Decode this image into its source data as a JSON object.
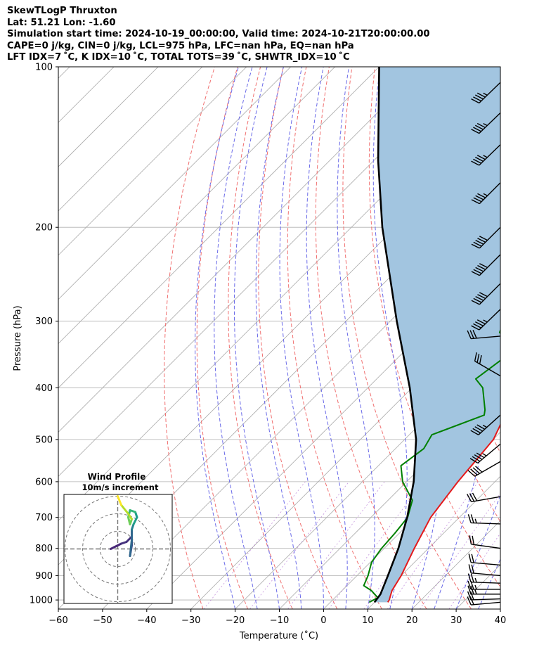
{
  "header": {
    "line1": "SkewTLogP Thruxton",
    "line2": "Lat: 51.21   Lon: -1.60",
    "line3": "Simulation start time: 2024-10-19_00:00:00, Valid time: 2024-10-21T20:00:00.00",
    "line4": "CAPE=0 j/kg, CIN=0 j/kg, LCL=975 hPa, LFC=nan hPa, EQ=nan hPa",
    "line5": "LFT IDX=7 ˚C, K IDX=10 ˚C, TOTAL TOTS=39 ˚C, SHWTR_IDX=10 ˚C"
  },
  "chart_data": {
    "type": "line",
    "xlabel": "Temperature (˚C)",
    "ylabel": "Pressure (hPa)",
    "xlim": [
      -60,
      40
    ],
    "ylim": [
      1040,
      100
    ],
    "y_scale": "log",
    "x_ticks": [
      "−60",
      "−50",
      "−40",
      "−30",
      "−20",
      "−10",
      "0",
      "10",
      "20",
      "30",
      "40"
    ],
    "y_ticks": [
      "100",
      "200",
      "300",
      "400",
      "500",
      "600",
      "700",
      "800",
      "900",
      "1000"
    ],
    "skew": 1,
    "grid": true,
    "series": [
      {
        "role": "temperature",
        "color": "#e41a1c",
        "points": [
          {
            "p": 1010,
            "t": 13.0
          },
          {
            "p": 1000,
            "t": 12.8
          },
          {
            "p": 960,
            "t": 11.3
          },
          {
            "p": 900,
            "t": 10.0
          },
          {
            "p": 800,
            "t": 6.8
          },
          {
            "p": 700,
            "t": 3.5
          },
          {
            "p": 600,
            "t": 1.6
          },
          {
            "p": 550,
            "t": 0.9
          },
          {
            "p": 500,
            "t": 0.1
          },
          {
            "p": 450,
            "t": -2.8
          },
          {
            "p": 400,
            "t": -5.4
          },
          {
            "p": 350,
            "t": -8.0
          },
          {
            "p": 325,
            "t": -9.9
          },
          {
            "p": 305,
            "t": -10.3
          },
          {
            "p": 280,
            "t": -11.7
          },
          {
            "p": 250,
            "t": -13.1
          },
          {
            "p": 215,
            "t": -15.2
          },
          {
            "p": 200,
            "t": -17.0
          },
          {
            "p": 175,
            "t": -22.1
          },
          {
            "p": 155,
            "t": -25.7
          },
          {
            "p": 140,
            "t": -28.1
          },
          {
            "p": 125,
            "t": -31.9
          },
          {
            "p": 115,
            "t": -34.6
          },
          {
            "p": 100,
            "t": -40.3
          }
        ]
      },
      {
        "role": "dewpoint",
        "color": "#008000",
        "points": [
          {
            "p": 1010,
            "t": 8.8
          },
          {
            "p": 990,
            "t": 9.7
          },
          {
            "p": 960,
            "t": 6.6
          },
          {
            "p": 940,
            "t": 3.8
          },
          {
            "p": 900,
            "t": 2.5
          },
          {
            "p": 850,
            "t": 0.3
          },
          {
            "p": 800,
            "t": -0.6
          },
          {
            "p": 750,
            "t": -1.0
          },
          {
            "p": 700,
            "t": -1.7
          },
          {
            "p": 650,
            "t": -4.5
          },
          {
            "p": 600,
            "t": -10.9
          },
          {
            "p": 560,
            "t": -14.9
          },
          {
            "p": 520,
            "t": -13.6
          },
          {
            "p": 490,
            "t": -14.9
          },
          {
            "p": 450,
            "t": -7.5
          },
          {
            "p": 440,
            "t": -8.5
          },
          {
            "p": 400,
            "t": -14.0
          },
          {
            "p": 385,
            "t": -17.6
          },
          {
            "p": 350,
            "t": -15.9
          },
          {
            "p": 330,
            "t": -17.5
          },
          {
            "p": 315,
            "t": -22.7
          },
          {
            "p": 290,
            "t": -25.3
          },
          {
            "p": 270,
            "t": -27.0
          },
          {
            "p": 255,
            "t": -26.0
          },
          {
            "p": 235,
            "t": -24.1
          },
          {
            "p": 215,
            "t": -23.6
          },
          {
            "p": 200,
            "t": -25.0
          },
          {
            "p": 180,
            "t": -25.4
          },
          {
            "p": 165,
            "t": -26.8
          },
          {
            "p": 150,
            "t": -22.6
          },
          {
            "p": 130,
            "t": -14.2
          },
          {
            "p": 100,
            "t": -2.5
          }
        ]
      },
      {
        "role": "parcel",
        "color": "#000000",
        "points": [
          {
            "p": 1010,
            "t": 10.0
          },
          {
            "p": 975,
            "t": 9.5
          },
          {
            "p": 900,
            "t": 7.0
          },
          {
            "p": 800,
            "t": 3.2
          },
          {
            "p": 700,
            "t": -1.8
          },
          {
            "p": 600,
            "t": -8.4
          },
          {
            "p": 500,
            "t": -17.4
          },
          {
            "p": 400,
            "t": -30.5
          },
          {
            "p": 300,
            "t": -48.5
          },
          {
            "p": 200,
            "t": -73.0
          },
          {
            "p": 150,
            "t": -89.0
          },
          {
            "p": 100,
            "t": -110.0
          }
        ]
      }
    ],
    "wind_barbs": [
      {
        "p": 1010,
        "dir": 265,
        "spd_kt": 20
      },
      {
        "p": 995,
        "dir": 268,
        "spd_kt": 22
      },
      {
        "p": 975,
        "dir": 270,
        "spd_kt": 25
      },
      {
        "p": 955,
        "dir": 270,
        "spd_kt": 25
      },
      {
        "p": 930,
        "dir": 272,
        "spd_kt": 25
      },
      {
        "p": 900,
        "dir": 275,
        "spd_kt": 20
      },
      {
        "p": 860,
        "dir": 275,
        "spd_kt": 20
      },
      {
        "p": 800,
        "dir": 278,
        "spd_kt": 20
      },
      {
        "p": 720,
        "dir": 272,
        "spd_kt": 25
      },
      {
        "p": 640,
        "dir": 260,
        "spd_kt": 30
      },
      {
        "p": 550,
        "dir": 240,
        "spd_kt": 40
      },
      {
        "p": 510,
        "dir": 230,
        "spd_kt": 45
      },
      {
        "p": 450,
        "dir": 228,
        "spd_kt": 45
      },
      {
        "p": 380,
        "dir": 300,
        "spd_kt": 30
      },
      {
        "p": 320,
        "dir": 265,
        "spd_kt": 30
      },
      {
        "p": 285,
        "dir": 226,
        "spd_kt": 45
      },
      {
        "p": 255,
        "dir": 225,
        "spd_kt": 50
      },
      {
        "p": 225,
        "dir": 225,
        "spd_kt": 50
      },
      {
        "p": 200,
        "dir": 225,
        "spd_kt": 50
      },
      {
        "p": 165,
        "dir": 225,
        "spd_kt": 45
      },
      {
        "p": 140,
        "dir": 226,
        "spd_kt": 45
      },
      {
        "p": 122,
        "dir": 226,
        "spd_kt": 45
      },
      {
        "p": 107,
        "dir": 226,
        "spd_kt": 45
      }
    ],
    "hodograph": {
      "title": "Wind Profile",
      "subtitle": "10m/s increment",
      "ring_step_ms": 10,
      "points_ms": [
        [
          -4,
          0
        ],
        [
          -2,
          1
        ],
        [
          2,
          3
        ],
        [
          5,
          4
        ],
        [
          8,
          7
        ],
        [
          8,
          2
        ],
        [
          7,
          -4
        ],
        [
          8,
          5
        ],
        [
          8,
          11
        ],
        [
          9,
          14
        ],
        [
          11,
          18
        ],
        [
          10,
          21
        ],
        [
          7,
          22
        ],
        [
          6,
          18
        ],
        [
          7,
          14
        ],
        [
          8,
          17
        ],
        [
          6,
          20
        ],
        [
          2,
          25
        ],
        [
          0,
          30
        ]
      ]
    }
  }
}
